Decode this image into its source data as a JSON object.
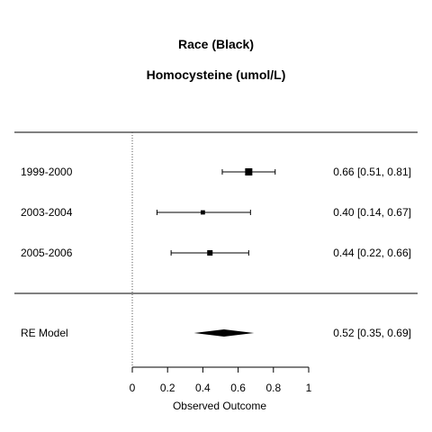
{
  "chart_data": {
    "type": "forest",
    "title": "Race (Black)",
    "subtitle": "Homocysteine (umol/L)",
    "xlabel": "Observed Outcome",
    "xlim": [
      0,
      1
    ],
    "xticks": [
      "0",
      "0.2",
      "0.4",
      "0.6",
      "0.8",
      "1"
    ],
    "reference_line": 0,
    "studies": [
      {
        "label": "1999-2000",
        "estimate": 0.66,
        "lower": 0.51,
        "upper": 0.81,
        "text": "0.66 [0.51, 0.81]",
        "weight": 1.0
      },
      {
        "label": "2003-2004",
        "estimate": 0.4,
        "lower": 0.14,
        "upper": 0.67,
        "text": "0.40 [0.14, 0.67]",
        "weight": 0.35
      },
      {
        "label": "2005-2006",
        "estimate": 0.44,
        "lower": 0.22,
        "upper": 0.66,
        "text": "0.44 [0.22, 0.66]",
        "weight": 0.6
      }
    ],
    "summary": {
      "label": "RE Model",
      "estimate": 0.52,
      "lower": 0.35,
      "upper": 0.69,
      "text": "0.52 [0.35, 0.69]"
    }
  }
}
